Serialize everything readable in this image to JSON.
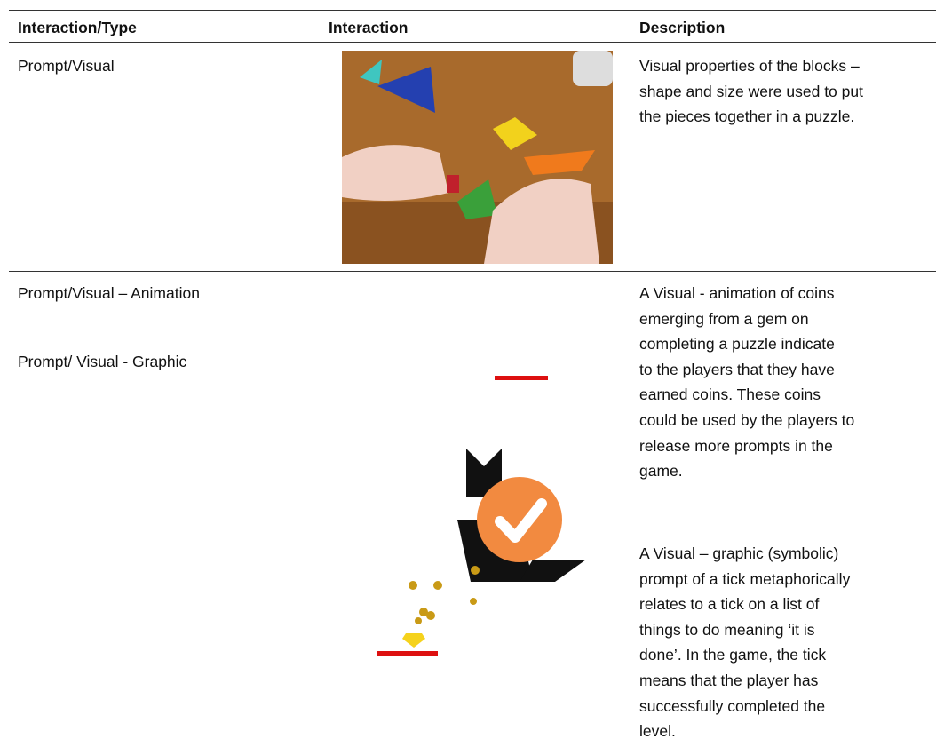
{
  "table": {
    "headers": [
      "Interaction/Type",
      "Interaction",
      "Description"
    ],
    "rows": [
      {
        "type": [
          "Prompt/Visual"
        ],
        "description": [
          [
            "Visual properties of the blocks –",
            "shape and size were used to put",
            "the pieces together in a puzzle."
          ]
        ]
      },
      {
        "type": [
          "Prompt/Visual – Animation",
          "Prompt/ Visual - Graphic"
        ],
        "description": [
          [
            "A Visual - animation of coins",
            "emerging from a gem on",
            "completing a puzzle indicate",
            "to the players that they have",
            "earned coins. These coins",
            "could be used by the players to",
            "release more prompts in the",
            "game."
          ],
          [
            "A Visual – graphic (symbolic)",
            "prompt of a tick metaphorically",
            "relates to a tick on a list of",
            "things to do meaning ‘it is",
            "done’. In the game, the tick",
            "means that the player has",
            "successfully completed the",
            "level."
          ]
        ]
      }
    ]
  }
}
